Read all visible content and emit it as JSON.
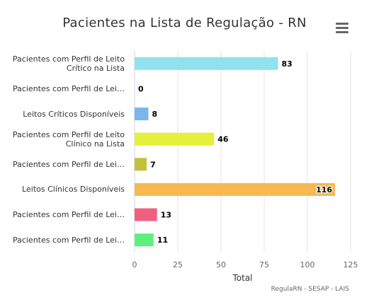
{
  "title": "Pacientes na Lista de Regulação - RN",
  "credits": "RegulaRN - SESAP - LAIS",
  "menu_icon": "hamburger-menu-icon",
  "chart_data": {
    "type": "bar",
    "orientation": "horizontal",
    "title": "Pacientes na Lista de Regulação - RN",
    "xlabel": "Total",
    "ylabel": "",
    "xlim": [
      0,
      125
    ],
    "xticks": [
      0,
      25,
      50,
      75,
      100,
      125
    ],
    "grid": true,
    "legend": "none",
    "categories": [
      "Pacientes com Perfil de Leito Crítico na Lista",
      "Pacientes com Perfil de Lei…",
      "Leitos Críticos Disponíveis",
      "Pacientes com Perfil de Leito Clínico na Lista",
      "Pacientes com Perfil de Lei…",
      "Leitos Clínicos Disponíveis",
      "Pacientes com Perfil de Lei…",
      "Pacientes com Perfil de Lei…"
    ],
    "label_lines": [
      [
        "Pacientes com Perfil de Leito",
        "Crítico na Lista"
      ],
      [
        "Pacientes com Perfil de Lei…"
      ],
      [
        "Leitos Críticos Disponíveis"
      ],
      [
        "Pacientes com Perfil de Leito",
        "Clínico na Lista"
      ],
      [
        "Pacientes com Perfil de Lei…"
      ],
      [
        "Leitos Clínicos Disponíveis"
      ],
      [
        "Pacientes com Perfil de Lei…"
      ],
      [
        "Pacientes com Perfil de Lei…"
      ]
    ],
    "values": [
      83,
      0,
      8,
      46,
      7,
      116,
      13,
      11
    ],
    "colors": [
      "#91e1ee",
      "#f7a35c",
      "#7cb5ec",
      "#e4f03a",
      "#c2c03c",
      "#f7b84f",
      "#f0607e",
      "#5ef07e"
    ]
  }
}
